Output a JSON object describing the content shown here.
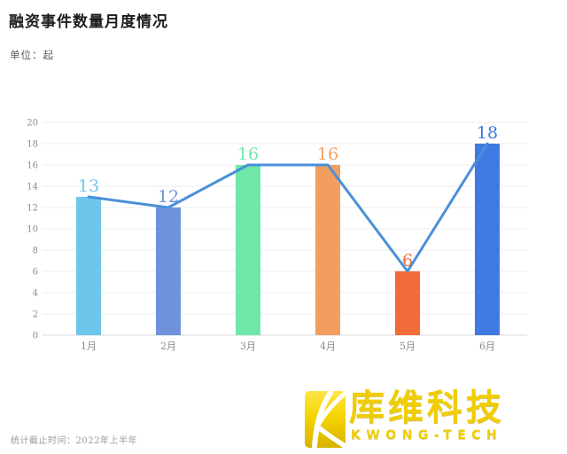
{
  "header": {
    "title": "融资事件数量月度情况",
    "unit_label": "单位：起"
  },
  "footer": {
    "note": "统计截止时间：2022年上半年"
  },
  "logo": {
    "name_cn": "库维科技",
    "name_en": "KWONG-TECH",
    "gold_color": "#f0cd00"
  },
  "chart_data": {
    "type": "bar",
    "line_overlay": true,
    "title": "融资事件数量月度情况",
    "unit": "起",
    "categories": [
      "1月",
      "2月",
      "3月",
      "4月",
      "5月",
      "6月"
    ],
    "values": [
      13,
      12,
      16,
      16,
      6,
      18
    ],
    "bar_colors": [
      "#6ec6ec",
      "#6f92dd",
      "#6fe7a8",
      "#f29e5e",
      "#f26b38",
      "#4179e2"
    ],
    "line_color": "#4a90d8",
    "ylim": [
      0,
      20
    ],
    "ytick_step": 2,
    "grid": true,
    "grid_color": "#ececec",
    "axis_color": "#d8d8d8",
    "tick_label_color": "#8c8c8c",
    "legend_position": "none",
    "xlabel": "",
    "ylabel": ""
  }
}
